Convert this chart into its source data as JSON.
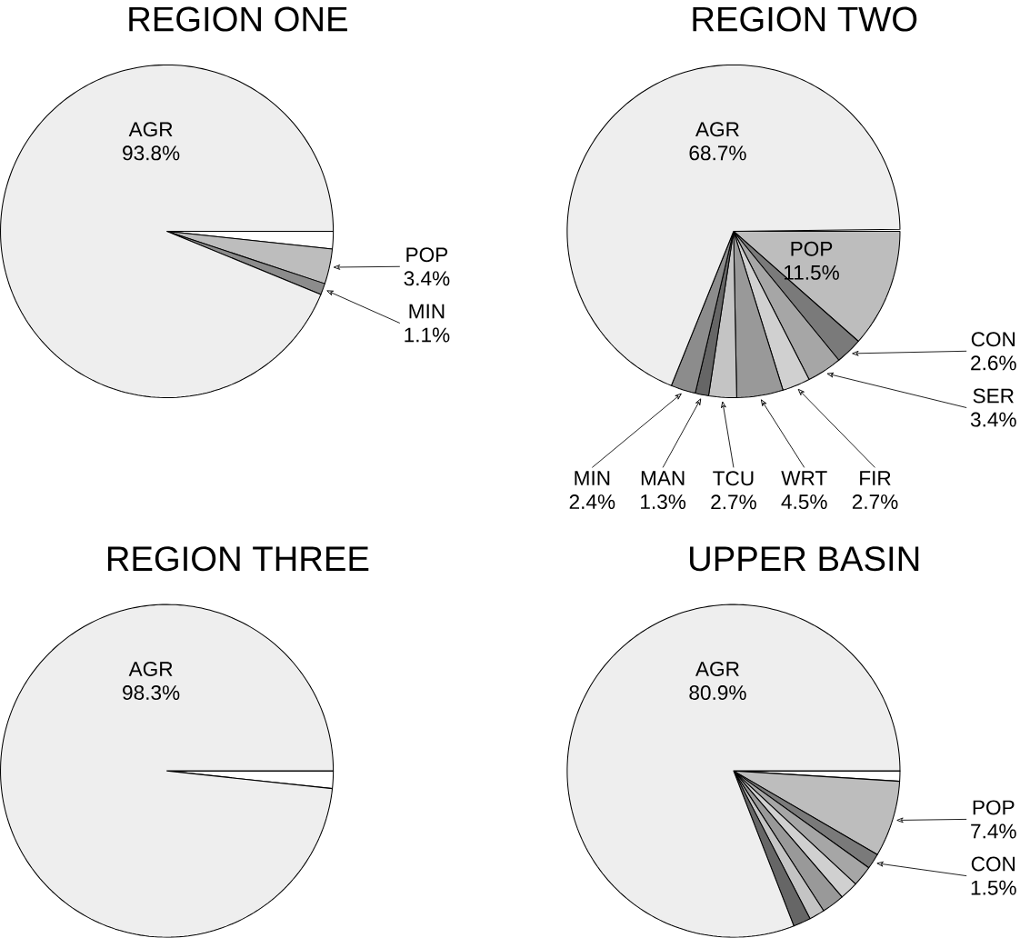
{
  "chart_data": [
    {
      "type": "pie",
      "title": "REGION ONE",
      "categories": [
        null,
        "POP",
        "MIN",
        "AGR"
      ],
      "values": [
        1.7,
        3.4,
        1.1,
        93.8
      ],
      "colors": [
        "#ffffff",
        "#bdbdbd",
        "#8c8c8c",
        "#eeeeee"
      ],
      "value_labels": [
        null,
        "3.4%",
        "1.1%",
        "93.8%"
      ]
    },
    {
      "type": "pie",
      "title": "REGION TWO",
      "categories": [
        "POP",
        "CON",
        "SER",
        "FIR",
        "WRT",
        "TCU",
        "MAN",
        "MIN",
        "AGR"
      ],
      "values": [
        11.5,
        2.6,
        3.4,
        2.7,
        4.5,
        2.7,
        1.3,
        2.4,
        68.7
      ],
      "colors": [
        "#bdbdbd",
        "#7a7a7a",
        "#a6a6a6",
        "#d0d0d0",
        "#999999",
        "#c4c4c4",
        "#666666",
        "#8c8c8c",
        "#eeeeee"
      ],
      "value_labels": [
        "11.5%",
        "2.6%",
        "3.4%",
        "2.7%",
        "4.5%",
        "2.7%",
        "1.3%",
        "2.4%",
        "68.7%"
      ]
    },
    {
      "type": "pie",
      "title": "REGION THREE",
      "categories": [
        null,
        "AGR"
      ],
      "values": [
        1.7,
        98.3
      ],
      "colors": [
        "#ffffff",
        "#eeeeee"
      ],
      "value_labels": [
        null,
        "98.3%"
      ]
    },
    {
      "type": "pie",
      "title": "UPPER BASIN",
      "categories": [
        null,
        "POP",
        "CON",
        null,
        null,
        null,
        null,
        null,
        "AGR"
      ],
      "values": [
        1.0,
        7.4,
        1.5,
        2.0,
        1.8,
        2.2,
        1.5,
        1.7,
        80.9
      ],
      "colors": [
        "#ffffff",
        "#bdbdbd",
        "#7a7a7a",
        "#a6a6a6",
        "#d0d0d0",
        "#999999",
        "#c4c4c4",
        "#666666",
        "#eeeeee"
      ],
      "value_labels": [
        null,
        "7.4%",
        "1.5%",
        null,
        null,
        null,
        null,
        null,
        "80.9%"
      ]
    }
  ]
}
